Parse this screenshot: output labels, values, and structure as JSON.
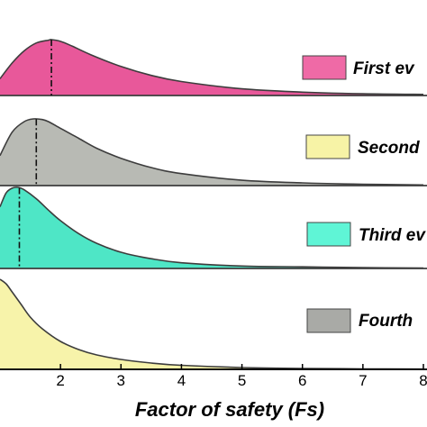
{
  "chart_data": {
    "type": "area",
    "subtype": "stacked ridgeline density",
    "xlabel": "Factor of safety (Fs)",
    "xlim": [
      1.0,
      8.0
    ],
    "x_ticks": [
      "2",
      "3",
      "4",
      "5",
      "6",
      "7",
      "8"
    ],
    "grid": false,
    "legend_placement": "right, one entry per ridge",
    "series": [
      {
        "name": "First ev",
        "color": "#e8589a",
        "legend_swatch_color": "#ef6aa6",
        "median_line": 1.85,
        "x": [
          1.0,
          1.2,
          1.4,
          1.6,
          1.8,
          1.85,
          2.0,
          2.2,
          2.5,
          3.0,
          3.5,
          4.0,
          5.0,
          6.0,
          7.0,
          8.0
        ],
        "density": [
          0.3,
          0.58,
          0.8,
          0.94,
          0.99,
          1.0,
          0.97,
          0.88,
          0.73,
          0.52,
          0.36,
          0.25,
          0.12,
          0.06,
          0.03,
          0.02
        ]
      },
      {
        "name": "Second",
        "color": "#b8bab4",
        "legend_swatch_color": "#f7f3a6",
        "median_line": 1.6,
        "x": [
          1.0,
          1.2,
          1.4,
          1.55,
          1.7,
          1.8,
          2.0,
          2.3,
          2.6,
          3.0,
          3.5,
          4.0,
          5.0,
          6.0,
          7.0,
          8.0
        ],
        "density": [
          0.45,
          0.8,
          0.96,
          1.0,
          0.99,
          0.96,
          0.86,
          0.71,
          0.56,
          0.41,
          0.27,
          0.18,
          0.08,
          0.04,
          0.02,
          0.01
        ]
      },
      {
        "name": "Third ev",
        "color": "#4ee6c6",
        "legend_swatch_color": "#5ff5d6",
        "median_line": 1.32,
        "x": [
          1.0,
          1.1,
          1.2,
          1.3,
          1.4,
          1.6,
          1.8,
          2.0,
          2.3,
          2.6,
          3.0,
          3.5,
          4.0,
          5.0,
          6.0,
          7.0,
          8.0
        ],
        "density": [
          0.76,
          0.93,
          0.99,
          1.0,
          0.97,
          0.86,
          0.72,
          0.59,
          0.43,
          0.31,
          0.2,
          0.12,
          0.07,
          0.03,
          0.02,
          0.01,
          0.005
        ]
      },
      {
        "name": "Fourth",
        "color": "#f7f3aa",
        "legend_swatch_color": "#a9aaa6",
        "median_line": null,
        "x": [
          1.0,
          1.1,
          1.2,
          1.35,
          1.5,
          1.7,
          2.0,
          2.3,
          2.6,
          3.0,
          3.5,
          4.0,
          5.0,
          6.0,
          7.0,
          8.0
        ],
        "density": [
          1.0,
          0.95,
          0.86,
          0.72,
          0.58,
          0.45,
          0.31,
          0.22,
          0.16,
          0.11,
          0.07,
          0.045,
          0.02,
          0.01,
          0.005,
          0.003
        ]
      }
    ]
  }
}
